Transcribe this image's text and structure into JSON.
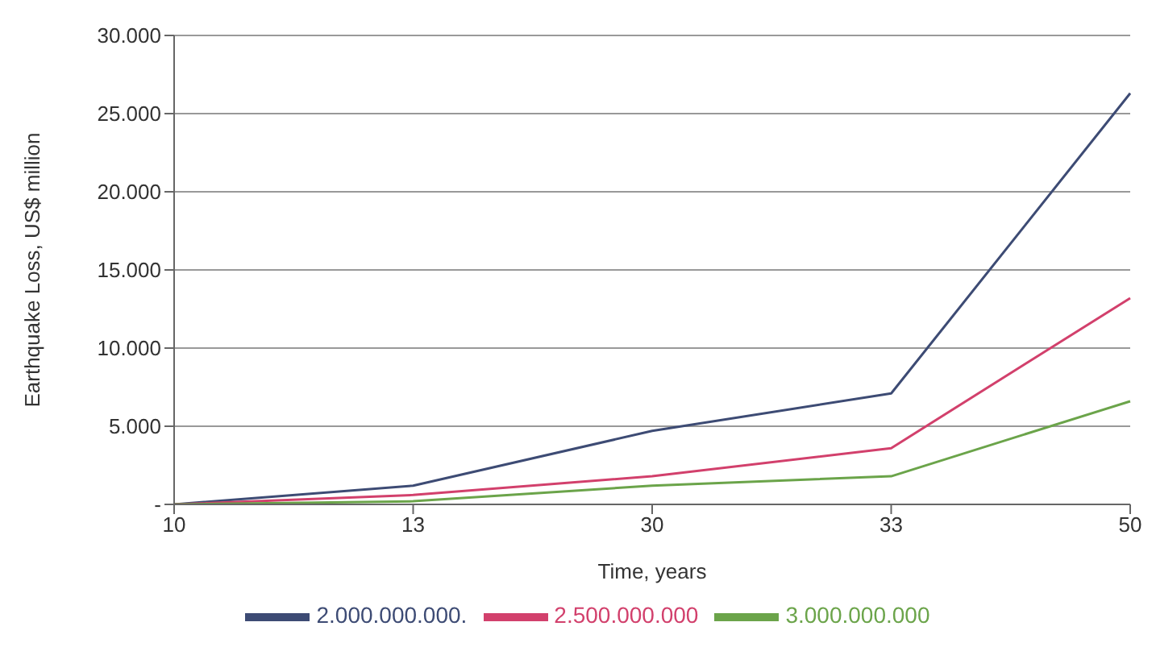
{
  "chart_data": {
    "type": "line",
    "xlabel": "Time, years",
    "ylabel": "Earthquake Loss, US$ million",
    "categories": [
      "10",
      "13",
      "30",
      "33",
      "50"
    ],
    "series": [
      {
        "name": "2.000.000.000.",
        "color": "#3d4b74",
        "values": [
          0,
          1200,
          4700,
          7100,
          26300
        ]
      },
      {
        "name": "2.500.000.000",
        "color": "#d2406c",
        "values": [
          0,
          600,
          1800,
          3600,
          13200
        ]
      },
      {
        "name": "3.000.000.000",
        "color": "#6ba44a",
        "values": [
          0,
          200,
          1200,
          1800,
          6600
        ]
      }
    ],
    "ylim": [
      0,
      30000
    ],
    "yticks": [
      {
        "value": 0,
        "label": "-"
      },
      {
        "value": 5000,
        "label": "5.000"
      },
      {
        "value": 10000,
        "label": "10.000"
      },
      {
        "value": 15000,
        "label": "15.000"
      },
      {
        "value": 20000,
        "label": "20.000"
      },
      {
        "value": 25000,
        "label": "25.000"
      },
      {
        "value": 30000,
        "label": "30.000"
      }
    ],
    "grid": "y",
    "legend": "bottom",
    "marker": "none",
    "line_style": "solid"
  }
}
